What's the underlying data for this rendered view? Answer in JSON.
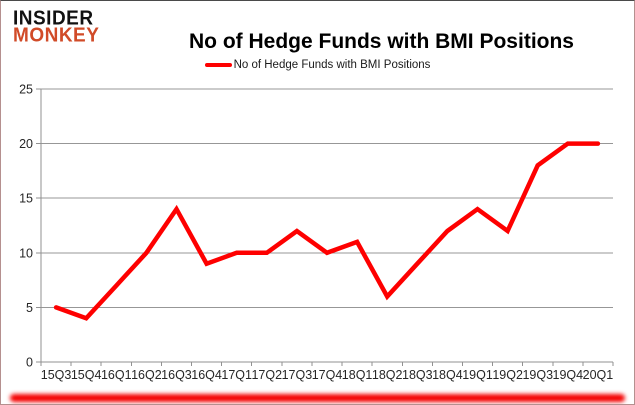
{
  "logo": {
    "line1": "INSIDER",
    "line2": "MONKEY"
  },
  "header": {
    "title": "No of Hedge Funds with BMI Positions"
  },
  "legend": {
    "label": "No of Hedge Funds with BMI Positions",
    "color": "#fe0000"
  },
  "colors": {
    "series_red": "#fe0000",
    "axis_gray": "#919191",
    "grid_gray": "#979797",
    "logo_black": "#111111",
    "logo_red": "#d14b28",
    "shadow_red": "#f40000"
  },
  "chart_data": {
    "type": "line",
    "title": "No of Hedge Funds with BMI Positions",
    "categories": [
      "15Q3",
      "15Q4",
      "16Q1",
      "16Q2",
      "16Q3",
      "16Q4",
      "17Q1",
      "17Q2",
      "17Q3",
      "17Q4",
      "18Q1",
      "18Q2",
      "18Q3",
      "18Q4",
      "19Q1",
      "19Q2",
      "19Q3",
      "19Q4",
      "20Q1"
    ],
    "series": [
      {
        "name": "No of Hedge Funds with BMI Positions",
        "color": "#fe0000",
        "values": [
          5,
          4,
          7,
          10,
          14,
          9,
          10,
          10,
          12,
          10,
          11,
          6,
          9,
          12,
          14,
          12,
          18,
          20,
          20
        ]
      }
    ],
    "xlabel": "",
    "ylabel": "",
    "ylim": [
      0,
      25
    ],
    "yticks": [
      0,
      5,
      10,
      15,
      20,
      25
    ],
    "grid": true,
    "legend_position": "top-center"
  }
}
